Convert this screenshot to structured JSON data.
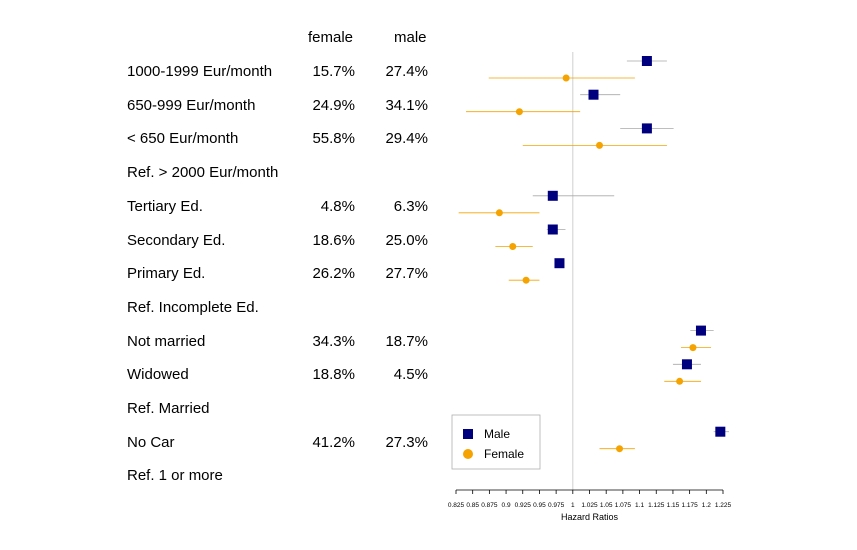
{
  "table": {
    "col_female": "female",
    "col_male": "male",
    "rows": [
      {
        "label": "1000-1999  Eur/month",
        "female": "15.7%",
        "male": "27.4%"
      },
      {
        "label": "650-999 Eur/month",
        "female": "24.9%",
        "male": "34.1%"
      },
      {
        "label": "< 650 Eur/month",
        "female": "55.8%",
        "male": "29.4%"
      },
      {
        "label": "Ref. > 2000 Eur/month",
        "female": "",
        "male": ""
      },
      {
        "label": "Tertiary Ed.",
        "female": "4.8%",
        "male": "6.3%"
      },
      {
        "label": "Secondary Ed.",
        "female": "18.6%",
        "male": "25.0%"
      },
      {
        "label": "Primary Ed.",
        "female": "26.2%",
        "male": "27.7%"
      },
      {
        "label": "Ref. Incomplete Ed.",
        "female": "",
        "male": ""
      },
      {
        "label": "Not married",
        "female": "34.3%",
        "male": "18.7%"
      },
      {
        "label": "Widowed",
        "female": "18.8%",
        "male": "4.5%"
      },
      {
        "label": "Ref. Married",
        "female": "",
        "male": ""
      },
      {
        "label": "No Car",
        "female": "41.2%",
        "male": "27.3%"
      },
      {
        "label": "Ref. 1 or more",
        "female": "",
        "male": ""
      }
    ]
  },
  "chart_data": {
    "type": "scatter",
    "xlabel": "Hazard Ratios",
    "xlim": [
      0.825,
      1.225
    ],
    "reference_line": 1,
    "xticks": [
      0.825,
      0.85,
      0.875,
      0.9,
      0.925,
      0.95,
      0.975,
      1,
      1.025,
      1.05,
      1.075,
      1.1,
      1.125,
      1.15,
      1.175,
      1.2,
      1.225
    ],
    "xtick_labels": [
      "0.825",
      "0.85",
      "0.875",
      "0.9",
      "0.925",
      "0.95",
      "0.975",
      "1",
      "1.025",
      "1.05",
      "1.075",
      "1.1",
      "1.125",
      "1.15",
      "1.175",
      "1.2",
      "1.225"
    ],
    "legend_position": "bottom-left",
    "series": [
      {
        "name": "Male",
        "marker": "square",
        "color": "#00007f",
        "ci_color": "#a9a9a9",
        "points": [
          {
            "row": 0,
            "hr": 1.111,
            "lo": 1.081,
            "hi": 1.141
          },
          {
            "row": 1,
            "hr": 1.031,
            "lo": 1.011,
            "hi": 1.071
          },
          {
            "row": 2,
            "hr": 1.111,
            "lo": 1.071,
            "hi": 1.151
          },
          {
            "row": 4,
            "hr": 0.97,
            "lo": 0.94,
            "hi": 1.062
          },
          {
            "row": 5,
            "hr": 0.97,
            "lo": 0.961,
            "hi": 0.989
          },
          {
            "row": 6,
            "hr": 0.98,
            "lo": 0.974,
            "hi": 0.985
          },
          {
            "row": 8,
            "hr": 1.192,
            "lo": 1.176,
            "hi": 1.211
          },
          {
            "row": 9,
            "hr": 1.171,
            "lo": 1.15,
            "hi": 1.192
          },
          {
            "row": 11,
            "hr": 1.221,
            "lo": 1.211,
            "hi": 1.234
          }
        ]
      },
      {
        "name": "Female",
        "marker": "circle",
        "color": "#f5a300",
        "ci_color": "#f5a300",
        "points": [
          {
            "row": 0,
            "hr": 0.99,
            "lo": 0.874,
            "hi": 1.093
          },
          {
            "row": 1,
            "hr": 0.92,
            "lo": 0.84,
            "hi": 1.011
          },
          {
            "row": 2,
            "hr": 1.04,
            "lo": 0.925,
            "hi": 1.141
          },
          {
            "row": 4,
            "hr": 0.89,
            "lo": 0.829,
            "hi": 0.95
          },
          {
            "row": 5,
            "hr": 0.91,
            "lo": 0.884,
            "hi": 0.94
          },
          {
            "row": 6,
            "hr": 0.93,
            "lo": 0.904,
            "hi": 0.95
          },
          {
            "row": 8,
            "hr": 1.18,
            "lo": 1.162,
            "hi": 1.207
          },
          {
            "row": 9,
            "hr": 1.16,
            "lo": 1.137,
            "hi": 1.192
          },
          {
            "row": 11,
            "hr": 1.07,
            "lo": 1.04,
            "hi": 1.093
          }
        ]
      }
    ]
  }
}
